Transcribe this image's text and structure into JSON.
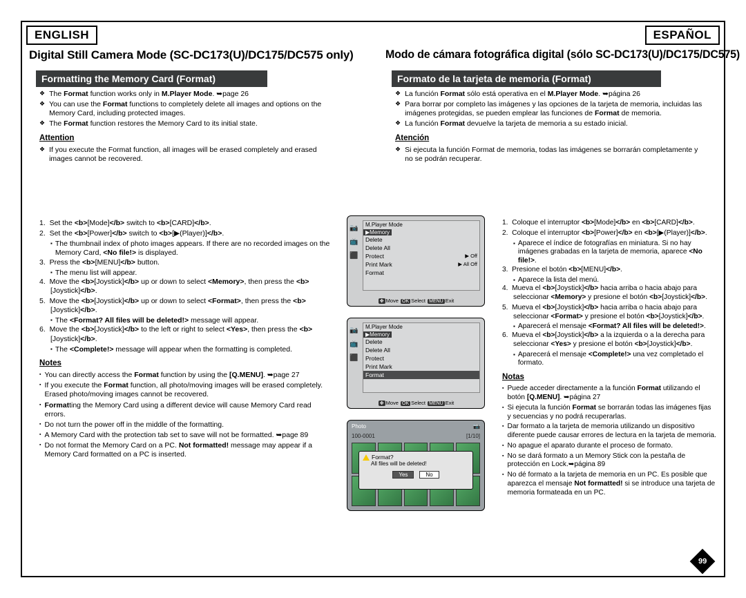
{
  "lang_en": "ENGLISH",
  "lang_es": "ESPAÑOL",
  "title_en": "Digital Still Camera Mode (SC-DC173(U)/DC175/DC575 only)",
  "title_es": "Modo de cámara fotográfica digital (sólo SC-DC173(U)/DC175/DC575)",
  "section_en": "Formatting the Memory Card (Format)",
  "section_es": "Formato de la tarjeta de memoria (Format)",
  "bullets_en": [
    "The Format function works only in M.Player Mode. ➥page 26",
    "You can use the Format functions to completely delete all images and options on the Memory Card, including protected images.",
    "The Format function restores the Memory Card to its initial state."
  ],
  "bullets_es": [
    "La función Format sólo está operativa en el M.Player Mode. ➥página 26",
    "Para borrar por completo las imágenes y las opciones de la tarjeta de memoria, incluidas las imágenes protegidas, se pueden emplear las funciones de Format de memoria.",
    "La función Format devuelve la tarjeta de memoria a su estado inicial."
  ],
  "attention_en": "Attention",
  "attention_es": "Atención",
  "attn_en": "If you execute the Format function, all images will be erased completely and erased images cannot be recovered.",
  "attn_es": "Si ejecuta la función Format de memoria, todas las imágenes se borrarán completamente y no se podrán recuperar.",
  "steps_en": [
    "Set the [Mode] switch to [CARD].",
    "Set the [Power] switch to [▶(Player)].",
    "Press the [MENU] button.",
    "Move the [Joystick] up or down to select <Memory>, then press the [Joystick].",
    "Move the [Joystick] up or down to select <Format>, then press the [Joystick].",
    "Move the [Joystick] to the left or right to select <Yes>, then press the [Joystick]."
  ],
  "steps_en_sub": {
    "2": [
      "The thumbnail index of photo images appears. If there are no recorded images on the Memory Card, <No file!> is displayed."
    ],
    "3": [
      "The menu list will appear."
    ],
    "5": [
      "The <Format? All files will be deleted!> message will appear."
    ],
    "6": [
      "The <Complete!> message will appear when the formatting is completed."
    ]
  },
  "steps_es": [
    "Coloque el interruptor [Mode] en [CARD].",
    "Coloque el interruptor [Power] en [▶(Player)].",
    "Presione el botón [MENU].",
    "Mueva el [Joystick] hacia arriba o hacia abajo para seleccionar <Memory> y presione el botón [Joystick].",
    "Mueva el [Joystick] hacia arriba o hacia abajo para seleccionar <Format> y presione el botón [Joystick].",
    "Mueva el [Joystick] a la izquierda o a la derecha para seleccionar <Yes> y presione el botón [Joystick]."
  ],
  "steps_es_sub": {
    "2": [
      "Aparece el índice de fotografías en miniatura. Si no hay imágenes grabadas en la tarjeta de memoria, aparece <No file!>."
    ],
    "3": [
      "Aparece la lista del menú."
    ],
    "5": [
      "Aparecerá el mensaje <Format? All files will be deleted!>."
    ],
    "6": [
      "Aparecerá el mensaje <Complete!> una vez completado el formato."
    ]
  },
  "notes_en_head": "Notes",
  "notes_es_head": "Notas",
  "notes_en": [
    "You can directly access the Format function by using the [Q.MENU]. ➥page 27",
    "If you execute the Format function, all photo/moving images will be erased completely. Erased photo/moving images cannot be recovered.",
    "Formatting the Memory Card using a different device will cause Memory Card read errors.",
    "Do not turn the power off in the middle of the formatting.",
    "A Memory Card with the protection tab set to save will not be formatted. ➥page 89",
    "Do not format the Memory Card on a PC. Not formatted! message may appear if a Memory Card formatted on a PC is inserted."
  ],
  "notes_es": [
    "Puede acceder directamente a la función Format utilizando el botón [Q.MENU]. ➥página 27",
    "Si ejecuta la función Format se borrarán todas las imágenes fijas y secuencias y no podrá recuperarlas.",
    "Dar formato a la tarjeta de memoria utilizando un dispositivo diferente puede causar errores de lectura en la tarjeta de memoria.",
    "No apague el aparato durante el proceso de formato.",
    "No se dará formato a un Memory Stick con la pestaña de protección en Lock.➥página 89",
    "No dé formato a la tarjeta de memoria en un PC. Es posible que aparezca el mensaje Not formatted! si se introduce una tarjeta de memoria formateada en un PC."
  ],
  "shot_menu_title": "M.Player Mode",
  "shot_menu_tab": "▶Memory",
  "shot4_items": [
    {
      "l": "Delete",
      "r": ""
    },
    {
      "l": "Delete All",
      "r": ""
    },
    {
      "l": "Protect",
      "r": "▶ Off"
    },
    {
      "l": "Print Mark",
      "r": "▶ All Off"
    },
    {
      "l": "Format",
      "r": ""
    }
  ],
  "shot5_items": [
    {
      "l": "Delete",
      "r": ""
    },
    {
      "l": "Delete All",
      "r": ""
    },
    {
      "l": "Protect",
      "r": ""
    },
    {
      "l": "Print Mark",
      "r": ""
    },
    {
      "l": "Format",
      "r": "",
      "sel": true
    }
  ],
  "shot_bottom_move": "Move",
  "shot_bottom_select": "Select",
  "shot_bottom_exit": "Exit",
  "shot6_top_left": "Photo",
  "shot6_folder": "100-0001",
  "shot6_count": "[1/10]",
  "shot6_dialog_title": "Format?",
  "shot6_dialog_msg": "All files will be deleted!",
  "shot6_yes": "Yes",
  "shot6_no": "No",
  "page_number": "99",
  "colors": {
    "section_bg": "#393b3c",
    "shot_bg": "#cfd0d1"
  }
}
